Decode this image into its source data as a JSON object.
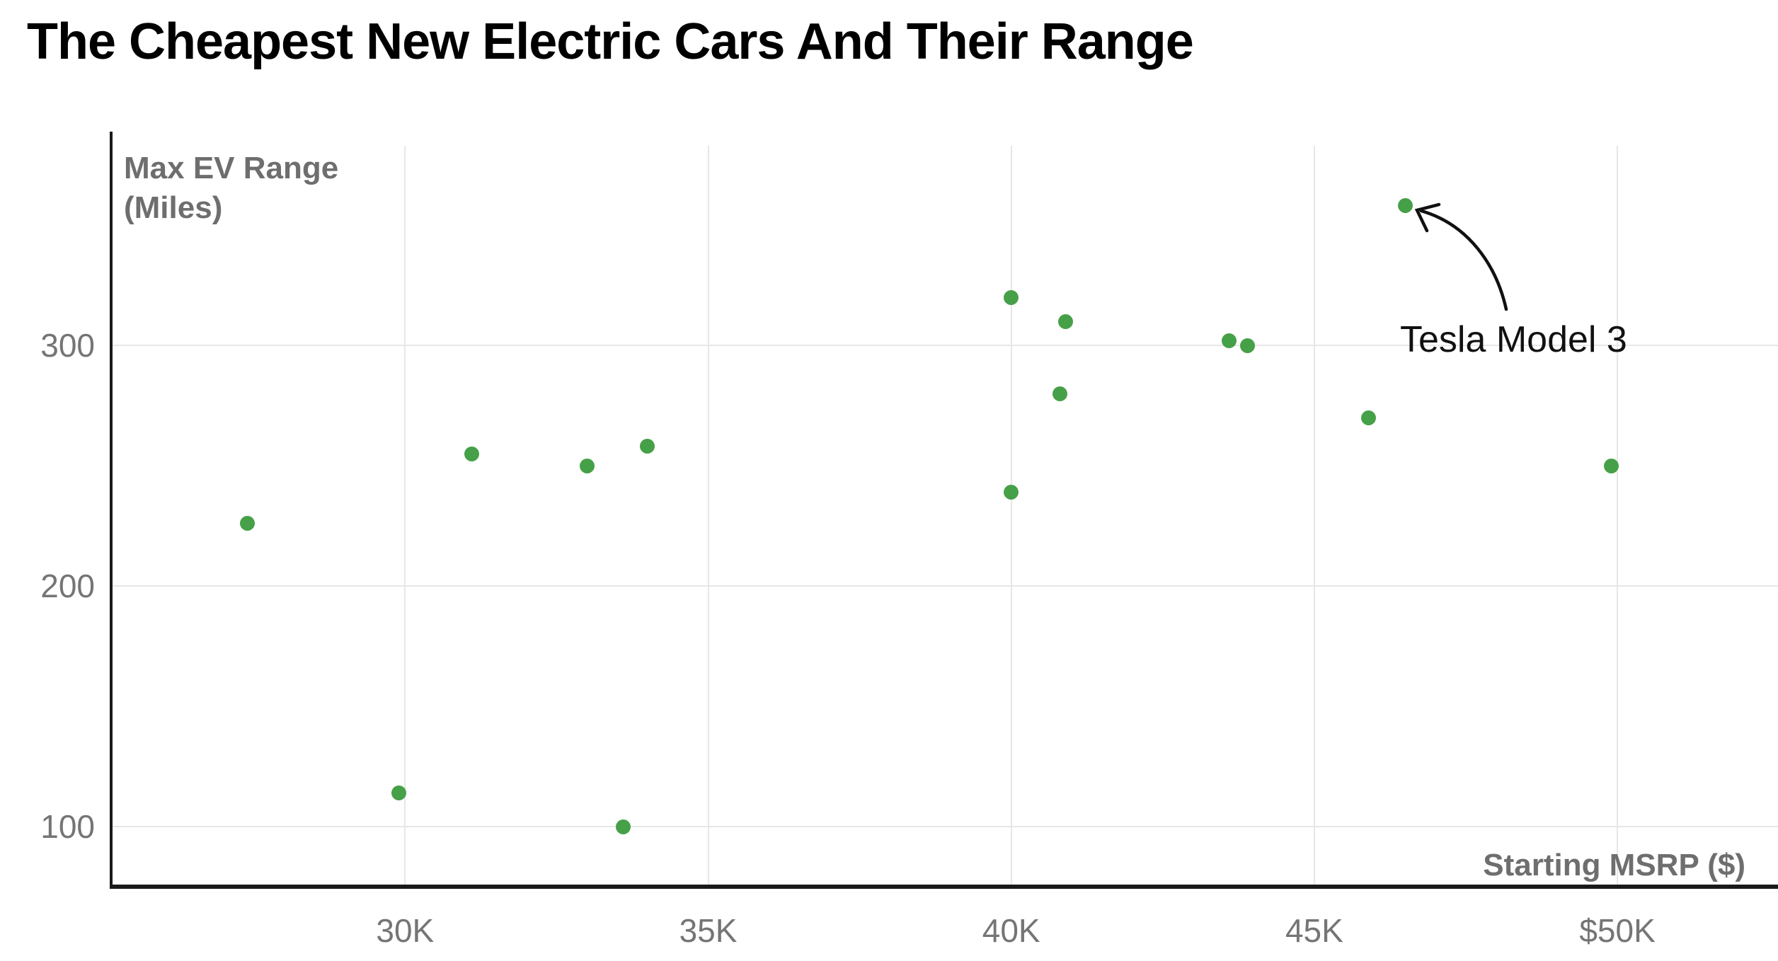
{
  "title": "The Cheapest New Electric Cars And Their Range",
  "colors": {
    "dot": "#46a048",
    "grid": "#e7e7e7",
    "axis": "#1a1a1a",
    "tick_text": "#757575",
    "axis_title_text": "#6e6e6e",
    "title_text": "#000000"
  },
  "chart_data": {
    "type": "scatter",
    "title": "The Cheapest New Electric Cars And Their Range",
    "xlabel": "Starting MSRP ($)",
    "ylabel": "Max EV Range (Miles)",
    "grid": true,
    "x_axis": {
      "label": "Starting MSRP ($)",
      "range": [
        25150,
        52650
      ],
      "ticks": [
        {
          "value": 30000,
          "label": "30K"
        },
        {
          "value": 35000,
          "label": "35K"
        },
        {
          "value": 40000,
          "label": "40K"
        },
        {
          "value": 45000,
          "label": "45K"
        },
        {
          "value": 50000,
          "label": "$50K"
        }
      ]
    },
    "y_axis": {
      "label": "Max EV Range (Miles)",
      "range": [
        75,
        383
      ],
      "ticks": [
        {
          "value": 100,
          "label": "100"
        },
        {
          "value": 200,
          "label": "200"
        },
        {
          "value": 300,
          "label": "300"
        }
      ]
    },
    "points": [
      {
        "msrp": 27400,
        "range": 226
      },
      {
        "msrp": 29900,
        "range": 114
      },
      {
        "msrp": 31100,
        "range": 255
      },
      {
        "msrp": 33000,
        "range": 250
      },
      {
        "msrp": 33600,
        "range": 100
      },
      {
        "msrp": 34000,
        "range": 258
      },
      {
        "msrp": 40000,
        "range": 320
      },
      {
        "msrp": 40900,
        "range": 310
      },
      {
        "msrp": 40800,
        "range": 280
      },
      {
        "msrp": 40000,
        "range": 239
      },
      {
        "msrp": 43600,
        "range": 302
      },
      {
        "msrp": 43900,
        "range": 300
      },
      {
        "msrp": 45900,
        "range": 270
      },
      {
        "msrp": 46500,
        "range": 358,
        "annotated": true
      },
      {
        "msrp": 49900,
        "range": 250
      }
    ],
    "annotation": {
      "text": "Tesla Model 3",
      "target": {
        "msrp": 46500,
        "range": 358
      }
    }
  }
}
